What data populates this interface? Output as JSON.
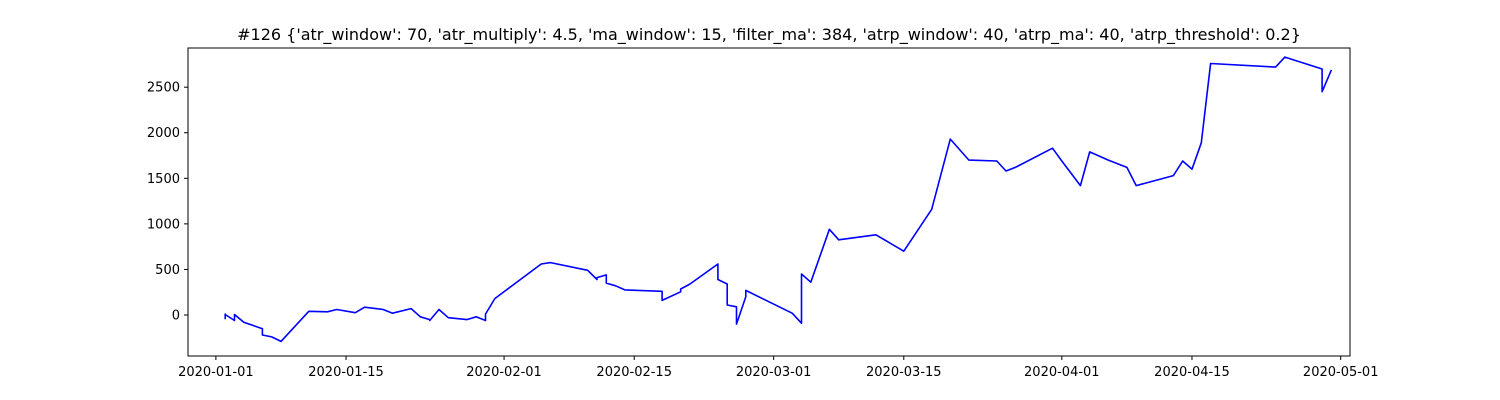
{
  "chart_data": {
    "type": "line",
    "title": "#126 {'atr_window': 70, 'atr_multiply': 4.5, 'ma_window': 15, 'filter_ma': 384, 'atrp_window': 40, 'atrp_ma': 40, 'atrp_threshold': 0.2}",
    "xlabel": "",
    "ylabel": "",
    "grid": false,
    "legend": "none",
    "line_color": "#0000ff",
    "x_range": [
      "2019-12-29",
      "2020-05-02"
    ],
    "ylim": [
      -450,
      2930
    ],
    "x_ticks": [
      "2020-01-01",
      "2020-01-15",
      "2020-02-01",
      "2020-02-15",
      "2020-03-01",
      "2020-03-15",
      "2020-04-01",
      "2020-04-15",
      "2020-05-01"
    ],
    "y_ticks": [
      0,
      500,
      1000,
      1500,
      2000,
      2500
    ],
    "series": [
      {
        "x": [
          "2020-01-02",
          "2020-01-02",
          "2020-01-02",
          "2020-01-02",
          "2020-01-02",
          "2020-01-03",
          "2020-01-03",
          "2020-01-03",
          "2020-01-03",
          "2020-01-03",
          "2020-01-04",
          "2020-01-06",
          "2020-01-06",
          "2020-01-06",
          "2020-01-07",
          "2020-01-08",
          "2020-01-11",
          "2020-01-13",
          "2020-01-14",
          "2020-01-16",
          "2020-01-17",
          "2020-01-19",
          "2020-01-20",
          "2020-01-22",
          "2020-01-23",
          "2020-01-24",
          "2020-01-24",
          "2020-01-25",
          "2020-01-26",
          "2020-01-28",
          "2020-01-29",
          "2020-01-30",
          "2020-01-30",
          "2020-01-30",
          "2020-01-31",
          "2020-02-05",
          "2020-02-05",
          "2020-02-06",
          "2020-02-10",
          "2020-02-11",
          "2020-02-11",
          "2020-02-12",
          "2020-02-12",
          "2020-02-13",
          "2020-02-14",
          "2020-02-18",
          "2020-02-18",
          "2020-02-20",
          "2020-02-20",
          "2020-02-21",
          "2020-02-24",
          "2020-02-24",
          "2020-02-25",
          "2020-02-25",
          "2020-02-26",
          "2020-02-26",
          "2020-02-27",
          "2020-02-27",
          "2020-03-03",
          "2020-03-04",
          "2020-03-04",
          "2020-03-05",
          "2020-03-07",
          "2020-03-08",
          "2020-03-12",
          "2020-03-15",
          "2020-03-18",
          "2020-03-20",
          "2020-03-22",
          "2020-03-25",
          "2020-03-26",
          "2020-03-27",
          "2020-03-31",
          "2020-04-01",
          "2020-04-03",
          "2020-04-04",
          "2020-04-06",
          "2020-04-08",
          "2020-04-09",
          "2020-04-13",
          "2020-04-14",
          "2020-04-15",
          "2020-04-16",
          "2020-04-17",
          "2020-04-24",
          "2020-04-25",
          "2020-04-29",
          "2020-04-29",
          "2020-04-29",
          "2020-04-30"
        ],
        "values": [
          0,
          10,
          -5,
          -40,
          5,
          -60,
          -10,
          -50,
          -40,
          5,
          -80,
          -150,
          -200,
          -220,
          -240,
          -290,
          40,
          35,
          60,
          25,
          85,
          60,
          20,
          70,
          -20,
          -50,
          -60,
          60,
          -30,
          -50,
          -20,
          -60,
          -10,
          10,
          180,
          560,
          560,
          575,
          490,
          390,
          410,
          440,
          350,
          320,
          275,
          260,
          160,
          255,
          285,
          340,
          560,
          390,
          340,
          110,
          90,
          -100,
          200,
          270,
          20,
          -90,
          450,
          360,
          940,
          825,
          880,
          700,
          1160,
          1930,
          1700,
          1690,
          1580,
          1620,
          1830,
          1690,
          1420,
          1790,
          1700,
          1620,
          1420,
          1530,
          1690,
          1600,
          1890,
          2760,
          2720,
          2830,
          2700,
          2500,
          2450,
          2690
        ]
      }
    ]
  }
}
